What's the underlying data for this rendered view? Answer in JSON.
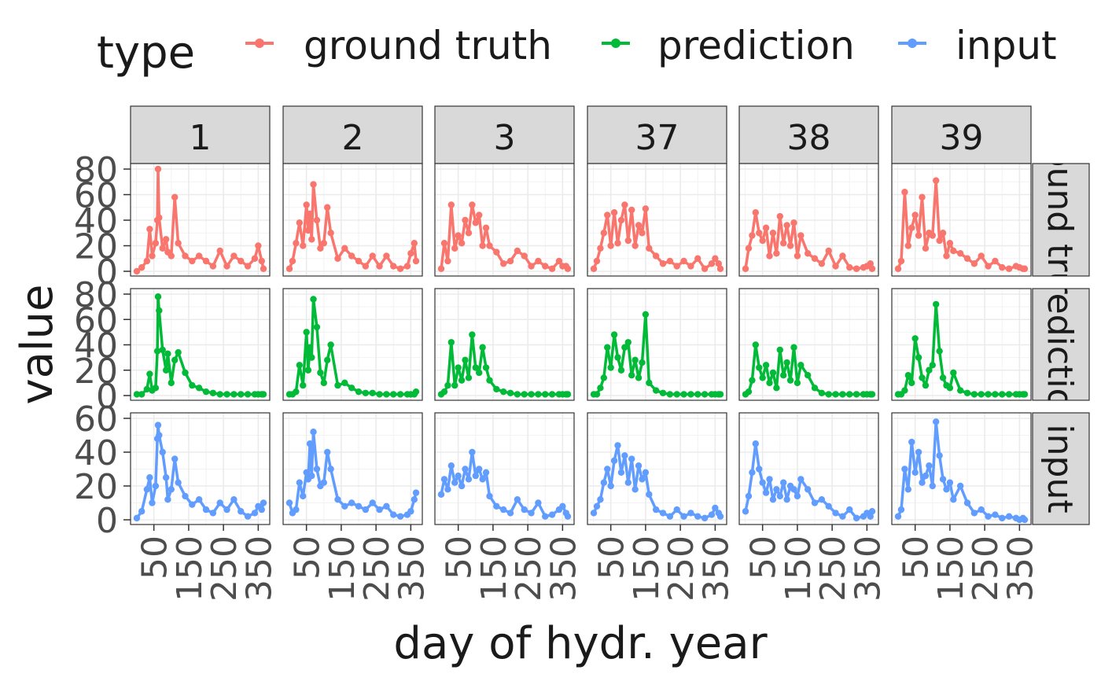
{
  "chart_data": {
    "type": "line",
    "facet_columns": [
      "1",
      "2",
      "3",
      "37",
      "38",
      "39"
    ],
    "facet_rows": [
      "ground truth",
      "prediction",
      "input"
    ],
    "xlabel": "day of hydr. year",
    "ylabel": "value",
    "xlim": [
      1,
      365
    ],
    "x_ticks": [
      50,
      150,
      250,
      350
    ],
    "x_tick_labels": [
      "50",
      "150",
      "250",
      "350"
    ],
    "row_axes": [
      {
        "ylim": [
          0,
          80
        ],
        "ticks": [
          0,
          20,
          40,
          60,
          80
        ],
        "tick_labels": [
          "0",
          "20",
          "40",
          "60",
          "80"
        ]
      },
      {
        "ylim": [
          0,
          80
        ],
        "ticks": [
          0,
          20,
          40,
          60,
          80
        ],
        "tick_labels": [
          "0",
          "20",
          "40",
          "60",
          "80"
        ]
      },
      {
        "ylim": [
          0,
          60
        ],
        "ticks": [
          0,
          20,
          40,
          60
        ],
        "tick_labels": [
          "0",
          "20",
          "40",
          "60"
        ]
      }
    ],
    "grid": true,
    "legend": {
      "title": "type",
      "position": "top",
      "items": [
        {
          "label": "ground truth",
          "color": "#F8766D"
        },
        {
          "label": "prediction",
          "color": "#00BA38"
        },
        {
          "label": "input",
          "color": "#619CFF"
        }
      ]
    },
    "panels": [
      [
        {
          "x": [
            1,
            15,
            30,
            38,
            45,
            55,
            60,
            62,
            65,
            75,
            85,
            90,
            100,
            110,
            120,
            140,
            160,
            180,
            200,
            220,
            240,
            260,
            280,
            300,
            320,
            340,
            350,
            360,
            365
          ],
          "y": [
            0,
            3,
            8,
            33,
            12,
            22,
            40,
            80,
            42,
            18,
            25,
            15,
            12,
            58,
            22,
            12,
            8,
            12,
            8,
            4,
            16,
            4,
            12,
            8,
            4,
            10,
            20,
            8,
            2
          ]
        },
        {
          "x": [
            1,
            15,
            30,
            38,
            45,
            55,
            60,
            62,
            65,
            75,
            85,
            90,
            100,
            110,
            120,
            140,
            160,
            180,
            200,
            220,
            240,
            260,
            280,
            300,
            320,
            340,
            350,
            360,
            365
          ],
          "y": [
            1,
            1,
            5,
            17,
            4,
            6,
            35,
            78,
            67,
            36,
            20,
            33,
            10,
            28,
            34,
            18,
            8,
            6,
            3,
            2,
            1,
            1,
            1,
            1,
            1,
            1,
            1,
            1,
            1
          ]
        },
        {
          "x": [
            1,
            15,
            30,
            38,
            45,
            55,
            60,
            62,
            65,
            75,
            85,
            90,
            100,
            110,
            120,
            140,
            160,
            180,
            200,
            220,
            240,
            260,
            280,
            300,
            320,
            340,
            350,
            360,
            365
          ],
          "y": [
            1,
            5,
            18,
            25,
            10,
            20,
            48,
            56,
            50,
            40,
            25,
            12,
            18,
            36,
            22,
            14,
            9,
            12,
            6,
            4,
            10,
            6,
            12,
            5,
            2,
            4,
            8,
            6,
            10
          ]
        }
      ],
      [
        {
          "x": [
            1,
            10,
            20,
            30,
            40,
            50,
            55,
            60,
            65,
            70,
            80,
            90,
            100,
            110,
            120,
            140,
            160,
            180,
            200,
            220,
            240,
            260,
            280,
            300,
            320,
            340,
            350,
            360,
            365
          ],
          "y": [
            2,
            8,
            22,
            38,
            20,
            52,
            32,
            45,
            25,
            68,
            40,
            18,
            22,
            50,
            30,
            10,
            18,
            12,
            8,
            4,
            12,
            4,
            12,
            4,
            2,
            4,
            14,
            22,
            8
          ]
        },
        {
          "x": [
            1,
            10,
            20,
            30,
            40,
            50,
            55,
            60,
            65,
            70,
            80,
            90,
            100,
            110,
            120,
            140,
            160,
            180,
            200,
            220,
            240,
            260,
            280,
            300,
            320,
            340,
            350,
            360,
            365
          ],
          "y": [
            1,
            1,
            3,
            24,
            8,
            50,
            20,
            38,
            30,
            76,
            54,
            18,
            10,
            28,
            40,
            8,
            10,
            6,
            3,
            2,
            2,
            1,
            1,
            1,
            1,
            1,
            1,
            1,
            3
          ]
        },
        {
          "x": [
            1,
            10,
            20,
            30,
            40,
            50,
            55,
            60,
            65,
            70,
            80,
            90,
            100,
            110,
            120,
            140,
            160,
            180,
            200,
            220,
            240,
            260,
            280,
            300,
            320,
            340,
            350,
            360,
            365
          ],
          "y": [
            10,
            4,
            6,
            22,
            14,
            28,
            24,
            45,
            26,
            52,
            30,
            20,
            22,
            40,
            30,
            12,
            8,
            10,
            8,
            6,
            10,
            6,
            8,
            3,
            2,
            3,
            5,
            12,
            16
          ]
        }
      ],
      [
        {
          "x": [
            1,
            10,
            20,
            30,
            40,
            50,
            60,
            70,
            80,
            90,
            100,
            110,
            120,
            130,
            140,
            160,
            180,
            200,
            220,
            240,
            260,
            280,
            300,
            320,
            340,
            350,
            360,
            365
          ],
          "y": [
            2,
            22,
            8,
            52,
            18,
            28,
            22,
            40,
            30,
            52,
            38,
            44,
            20,
            34,
            20,
            15,
            6,
            8,
            16,
            12,
            4,
            8,
            4,
            2,
            8,
            4,
            4,
            2
          ]
        },
        {
          "x": [
            1,
            10,
            20,
            30,
            40,
            50,
            60,
            70,
            80,
            90,
            100,
            110,
            120,
            130,
            140,
            160,
            180,
            200,
            220,
            240,
            260,
            280,
            300,
            320,
            340,
            350,
            360,
            365
          ],
          "y": [
            1,
            3,
            8,
            42,
            8,
            22,
            12,
            28,
            14,
            48,
            22,
            18,
            38,
            22,
            12,
            5,
            3,
            2,
            1,
            1,
            1,
            1,
            1,
            1,
            1,
            1,
            1,
            1
          ]
        },
        {
          "x": [
            1,
            10,
            20,
            30,
            40,
            50,
            60,
            70,
            80,
            90,
            100,
            110,
            120,
            130,
            140,
            160,
            180,
            200,
            220,
            240,
            260,
            280,
            300,
            320,
            340,
            350,
            360,
            365
          ],
          "y": [
            15,
            24,
            18,
            32,
            22,
            26,
            20,
            30,
            24,
            40,
            26,
            30,
            24,
            28,
            14,
            8,
            6,
            4,
            12,
            6,
            4,
            10,
            2,
            3,
            6,
            8,
            4,
            2
          ]
        }
      ],
      [
        {
          "x": [
            1,
            10,
            20,
            30,
            40,
            50,
            60,
            70,
            80,
            90,
            100,
            110,
            120,
            130,
            140,
            150,
            160,
            180,
            200,
            220,
            240,
            260,
            280,
            300,
            320,
            340,
            350,
            360,
            365
          ],
          "y": [
            2,
            8,
            18,
            30,
            44,
            20,
            46,
            22,
            40,
            52,
            24,
            48,
            20,
            36,
            30,
            49,
            18,
            12,
            6,
            8,
            4,
            8,
            4,
            10,
            2,
            6,
            10,
            6,
            2
          ]
        },
        {
          "x": [
            1,
            10,
            20,
            30,
            40,
            50,
            60,
            70,
            80,
            90,
            100,
            110,
            120,
            130,
            140,
            150,
            160,
            180,
            200,
            220,
            240,
            260,
            280,
            300,
            320,
            340,
            350,
            360,
            365
          ],
          "y": [
            1,
            1,
            6,
            14,
            38,
            22,
            48,
            30,
            20,
            38,
            42,
            16,
            28,
            14,
            26,
            64,
            10,
            4,
            2,
            1,
            1,
            1,
            1,
            1,
            1,
            1,
            1,
            1,
            1
          ]
        },
        {
          "x": [
            1,
            10,
            20,
            30,
            40,
            50,
            60,
            70,
            80,
            90,
            100,
            110,
            120,
            130,
            140,
            150,
            160,
            180,
            200,
            220,
            240,
            260,
            280,
            300,
            320,
            340,
            350,
            360,
            365
          ],
          "y": [
            4,
            8,
            12,
            22,
            30,
            20,
            35,
            44,
            28,
            38,
            22,
            36,
            18,
            32,
            24,
            28,
            15,
            6,
            4,
            2,
            6,
            2,
            4,
            2,
            1,
            3,
            7,
            4,
            2
          ]
        }
      ],
      [
        {
          "x": [
            1,
            10,
            20,
            30,
            40,
            50,
            60,
            70,
            80,
            90,
            100,
            110,
            120,
            130,
            140,
            150,
            160,
            180,
            200,
            220,
            240,
            260,
            280,
            300,
            320,
            340,
            350,
            360,
            365
          ],
          "y": [
            2,
            18,
            28,
            46,
            30,
            24,
            34,
            12,
            30,
            14,
            43,
            22,
            36,
            20,
            38,
            12,
            28,
            14,
            10,
            6,
            16,
            4,
            12,
            3,
            2,
            3,
            4,
            6,
            2
          ]
        },
        {
          "x": [
            1,
            10,
            20,
            30,
            40,
            50,
            60,
            70,
            80,
            90,
            100,
            110,
            120,
            130,
            140,
            150,
            160,
            180,
            200,
            220,
            240,
            260,
            280,
            300,
            320,
            340,
            350,
            360,
            365
          ],
          "y": [
            1,
            3,
            12,
            40,
            22,
            14,
            24,
            10,
            18,
            6,
            36,
            16,
            26,
            12,
            38,
            10,
            24,
            16,
            6,
            2,
            1,
            1,
            1,
            1,
            1,
            1,
            1,
            1,
            1
          ]
        },
        {
          "x": [
            1,
            10,
            20,
            30,
            40,
            50,
            60,
            70,
            80,
            90,
            100,
            110,
            120,
            130,
            140,
            150,
            160,
            180,
            200,
            220,
            240,
            260,
            280,
            300,
            320,
            340,
            350,
            360,
            365
          ],
          "y": [
            5,
            14,
            28,
            45,
            30,
            22,
            16,
            24,
            12,
            18,
            14,
            22,
            12,
            20,
            18,
            14,
            24,
            18,
            10,
            12,
            8,
            4,
            2,
            6,
            1,
            2,
            4,
            2,
            5
          ]
        }
      ],
      [
        {
          "x": [
            1,
            10,
            20,
            30,
            40,
            50,
            60,
            70,
            80,
            90,
            100,
            110,
            120,
            130,
            140,
            150,
            160,
            180,
            200,
            220,
            240,
            260,
            280,
            300,
            320,
            340,
            350,
            360,
            365
          ],
          "y": [
            2,
            8,
            62,
            20,
            34,
            44,
            28,
            58,
            18,
            30,
            28,
            71,
            24,
            30,
            12,
            22,
            16,
            14,
            10,
            6,
            12,
            4,
            8,
            3,
            2,
            4,
            3,
            2,
            2
          ]
        },
        {
          "x": [
            1,
            10,
            20,
            30,
            40,
            50,
            60,
            70,
            80,
            90,
            100,
            110,
            120,
            130,
            140,
            150,
            160,
            180,
            200,
            220,
            240,
            260,
            280,
            300,
            320,
            340,
            350,
            360,
            365
          ],
          "y": [
            1,
            1,
            4,
            16,
            10,
            45,
            30,
            14,
            8,
            20,
            24,
            72,
            35,
            14,
            8,
            6,
            18,
            4,
            2,
            1,
            1,
            1,
            1,
            1,
            1,
            1,
            1,
            1,
            1
          ]
        },
        {
          "x": [
            1,
            10,
            20,
            30,
            40,
            50,
            60,
            70,
            80,
            90,
            100,
            110,
            120,
            130,
            140,
            150,
            160,
            180,
            200,
            220,
            240,
            260,
            280,
            300,
            320,
            340,
            350,
            360,
            365
          ],
          "y": [
            2,
            6,
            30,
            18,
            46,
            28,
            40,
            22,
            26,
            32,
            20,
            58,
            38,
            24,
            18,
            22,
            12,
            20,
            10,
            4,
            6,
            2,
            3,
            1,
            2,
            1,
            0,
            1,
            0
          ]
        }
      ]
    ]
  }
}
